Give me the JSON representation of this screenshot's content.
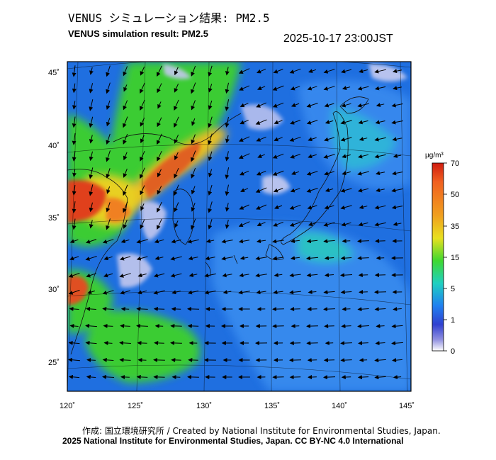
{
  "header": {
    "title_jp": "VENUS シミュレーション結果: PM2.5",
    "title_en": "VENUS simulation result: PM2.5",
    "timestamp": "2025-10-17 23:00JST"
  },
  "map": {
    "lon_labels": [
      "120˚",
      "125˚",
      "130˚",
      "135˚",
      "140˚",
      "145˚"
    ],
    "lat_labels": [
      "45˚",
      "40˚",
      "35˚",
      "30˚",
      "25˚"
    ],
    "lon_range": [
      120,
      145
    ],
    "lat_range": [
      23,
      46
    ],
    "colors": {
      "background": "#1f6fe0",
      "land_clean": "#c4c8ee",
      "high": "#e0401a",
      "mid": "#e8c020",
      "green": "#3cd22a"
    }
  },
  "colorbar": {
    "unit": "μg/m³",
    "levels": [
      "70",
      "50",
      "35",
      "15",
      "5",
      "1",
      "0"
    ],
    "stops": [
      "#d01c10",
      "#f06020",
      "#f0a020",
      "#e8e020",
      "#40d830",
      "#20d0c0",
      "#2080f0",
      "#3040d0",
      "#9090e0",
      "#ffffff"
    ]
  },
  "footer": {
    "credit": "作成: 国立環境研究所 / Created by National Institute for Environmental Studies, Japan.",
    "copyright": "2025 National Institute for Environmental Studies, Japan. CC BY-NC 4.0 International"
  }
}
